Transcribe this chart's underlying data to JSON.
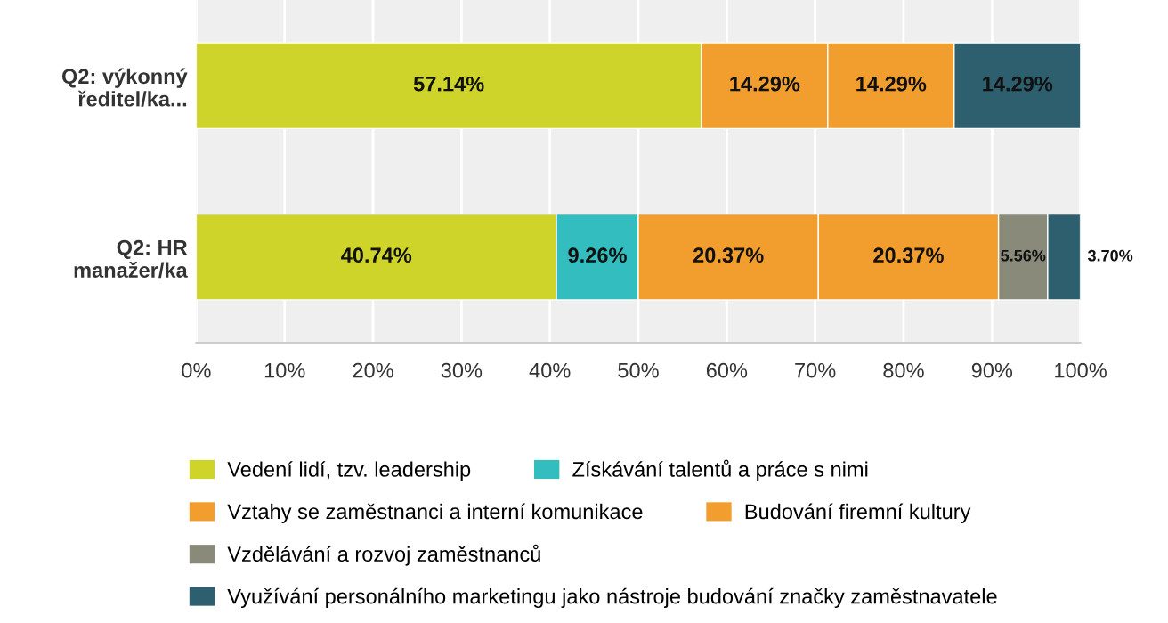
{
  "chart_data": {
    "type": "bar",
    "orientation": "horizontal",
    "stacked": true,
    "grid": "x",
    "legend": "bottom",
    "categories": [
      "Q2: výkonný\nředitel/ka...",
      "Q2: HR\nmanažer/ka"
    ],
    "xlim": [
      0,
      100
    ],
    "xticks": [
      {
        "value": 0,
        "label": "0%"
      },
      {
        "value": 10,
        "label": "10%"
      },
      {
        "value": 20,
        "label": "20%"
      },
      {
        "value": 30,
        "label": "30%"
      },
      {
        "value": 40,
        "label": "40%"
      },
      {
        "value": 50,
        "label": "50%"
      },
      {
        "value": 60,
        "label": "60%"
      },
      {
        "value": 70,
        "label": "70%"
      },
      {
        "value": 80,
        "label": "80%"
      },
      {
        "value": 90,
        "label": "90%"
      },
      {
        "value": 100,
        "label": "100%"
      }
    ],
    "series": [
      {
        "name": "Vedení lidí, tzv. leadership",
        "color": "#cfd42a",
        "values": [
          57.14,
          40.74
        ],
        "value_labels": [
          "57.14%",
          "40.74%"
        ]
      },
      {
        "name": "Získávání talentů a práce s nimi",
        "color": "#33bdbf",
        "values": [
          null,
          9.26
        ],
        "value_labels": [
          null,
          "9.26%"
        ]
      },
      {
        "name": "Vztahy se zaměstnanci a interní komunikace",
        "color": "#f29e2e",
        "values": [
          14.29,
          20.37
        ],
        "value_labels": [
          "14.29%",
          "20.37%"
        ]
      },
      {
        "name": "Budování firemní kultury",
        "color": "#f29e2e",
        "values": [
          14.29,
          20.37
        ],
        "value_labels": [
          "14.29%",
          "20.37%"
        ]
      },
      {
        "name": "Vzdělávání a rozvoj zaměstnanců",
        "color": "#898a7a",
        "values": [
          null,
          5.56
        ],
        "value_labels": [
          null,
          "5.56%"
        ]
      },
      {
        "name": "Využívání personálního marketingu jako nástroje budování značky zaměstnavatele",
        "color": "#2d5f6e",
        "values": [
          14.29,
          3.7
        ],
        "value_labels": [
          "14.29%",
          "3.70%"
        ]
      }
    ]
  }
}
